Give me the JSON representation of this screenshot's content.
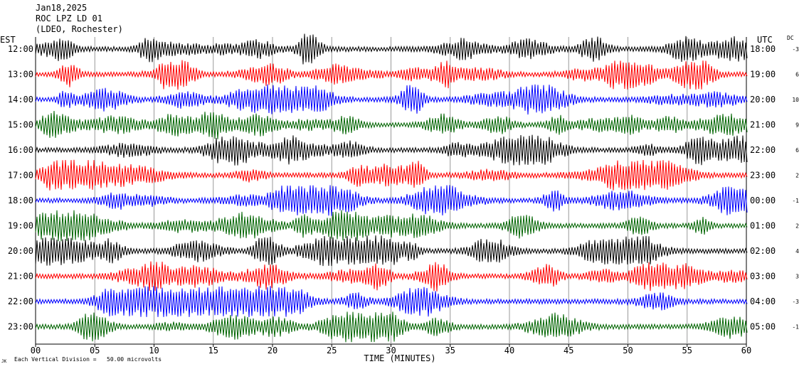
{
  "header": {
    "date": "Jan18,2025",
    "station": "ROC LPZ LD 01",
    "network": "(LDEO, Rochester)"
  },
  "chart_data": {
    "type": "line",
    "left_axis_label": "EST",
    "right_axis_label": "UTC",
    "dc_label": "DC",
    "xlabel": "TIME (MINUTES)",
    "xlim": [
      0,
      60
    ],
    "x_ticks": [
      "00",
      "05",
      "10",
      "15",
      "20",
      "25",
      "30",
      "35",
      "40",
      "45",
      "50",
      "55",
      "60"
    ],
    "rows": [
      {
        "est": "12:00",
        "utc": "18:00",
        "dc": "-3",
        "color": "#000000"
      },
      {
        "est": "13:00",
        "utc": "19:00",
        "dc": "6",
        "color": "#ff0000"
      },
      {
        "est": "14:00",
        "utc": "20:00",
        "dc": "10",
        "color": "#0000ff"
      },
      {
        "est": "15:00",
        "utc": "21:00",
        "dc": "9",
        "color": "#006400"
      },
      {
        "est": "16:00",
        "utc": "22:00",
        "dc": "6",
        "color": "#000000"
      },
      {
        "est": "17:00",
        "utc": "23:00",
        "dc": "2",
        "color": "#ff0000"
      },
      {
        "est": "18:00",
        "utc": "00:00",
        "dc": "-1",
        "color": "#0000ff"
      },
      {
        "est": "19:00",
        "utc": "01:00",
        "dc": "2",
        "color": "#006400"
      },
      {
        "est": "20:00",
        "utc": "02:00",
        "dc": "4",
        "color": "#000000"
      },
      {
        "est": "21:00",
        "utc": "03:00",
        "dc": "3",
        "color": "#ff0000"
      },
      {
        "est": "22:00",
        "utc": "04:00",
        "dc": "-3",
        "color": "#0000ff"
      },
      {
        "est": "23:00",
        "utc": "05:00",
        "dc": "-1",
        "color": "#006400"
      }
    ],
    "footnote": "Each Vertical Division =   50.00 microvolts",
    "footnote_mark": "JK"
  }
}
